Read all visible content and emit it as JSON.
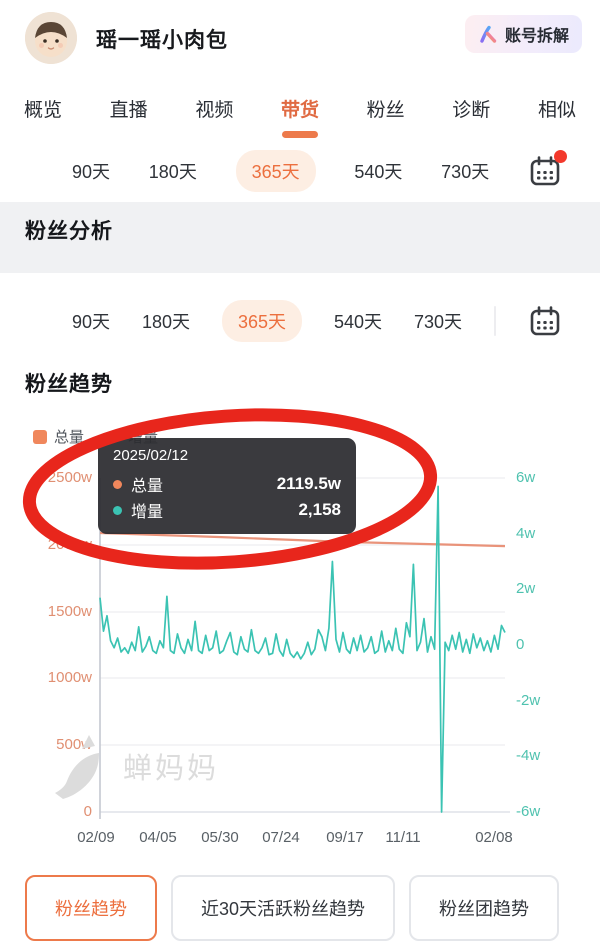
{
  "header": {
    "account_name": "瑶一瑶小肉包",
    "analyze_button": "账号拆解"
  },
  "tabs": {
    "items": [
      {
        "label": "概览"
      },
      {
        "label": "直播"
      },
      {
        "label": "视频"
      },
      {
        "label": "带货"
      },
      {
        "label": "粉丝"
      },
      {
        "label": "诊断"
      },
      {
        "label": "相似"
      }
    ],
    "active": "带货"
  },
  "time_selector": {
    "options": [
      "90天",
      "180天",
      "365天",
      "540天",
      "730天"
    ],
    "selected": "365天",
    "calendar_icon": "calendar-icon",
    "row1_badge": "red-dot-unread"
  },
  "section": {
    "title": "粉丝分析"
  },
  "card": {
    "chart_title": "粉丝趋势"
  },
  "tooltip": {
    "date": "2025/02/12",
    "rows": [
      {
        "label": "总量",
        "value": "2119.5w",
        "color": "#f0875c"
      },
      {
        "label": "增量",
        "value": "2,158",
        "color": "#3bc3b3"
      }
    ]
  },
  "watermark": {
    "text": "蝉妈妈"
  },
  "footer_tabs": [
    {
      "label": "粉丝趋势",
      "active": true
    },
    {
      "label": "近30天活跃粉丝趋势",
      "active": false
    },
    {
      "label": "粉丝团趋势",
      "active": false
    }
  ],
  "colors": {
    "accent_orange": "#ed7a4b",
    "selected_pill_bg": "#fdeee3",
    "total_line": "#e9937a",
    "increment_line": "#3bc3b3",
    "left_axis_text": "#e08f72",
    "right_axis_text": "#4fc2af",
    "annotation_red": "#e8261c",
    "tooltip_bg": "#2b2b2f",
    "badge_red": "#f3392c"
  },
  "chart_data": {
    "type": "line",
    "title": "粉丝趋势",
    "legend": [
      "总量",
      "增量"
    ],
    "legend_position": "top-left",
    "grid": true,
    "x_tick_labels": [
      "02/09",
      "04/05",
      "05/30",
      "07/24",
      "09/17",
      "11/11",
      "02/08"
    ],
    "y_left": {
      "ticks": [
        "2500w",
        "2000w",
        "1500w",
        "1000w",
        "500w",
        "0"
      ],
      "min": 0,
      "max": 2500,
      "unit": "w(万)"
    },
    "y_right": {
      "ticks": [
        "6w",
        "4w",
        "2w",
        "0",
        "-2w",
        "-4w",
        "-6w"
      ],
      "min": -6,
      "max": 6,
      "unit": "w(万)"
    },
    "highlighted_point": {
      "date": "2025/02/12",
      "total": "2119.5w",
      "increment": "2,158"
    },
    "series": [
      {
        "name": "总量",
        "axis": "left",
        "color": "#e9937a",
        "points_frac_value": [
          [
            0,
            2088
          ],
          [
            0.3,
            2058
          ],
          [
            0.6,
            2022
          ],
          [
            0.85,
            2002
          ],
          [
            1,
            1990
          ]
        ]
      },
      {
        "name": "增量",
        "axis": "right",
        "color": "#3bc3b3",
        "values_w": [
          1.7,
          0.5,
          1.05,
          0.15,
          -0.1,
          0.25,
          -0.25,
          -0.1,
          -0.3,
          0.1,
          -0.2,
          0.65,
          -0.25,
          -0.05,
          0.3,
          -0.2,
          -0.3,
          0.15,
          -0.1,
          1.75,
          -0.2,
          -0.3,
          0.4,
          -0.1,
          -0.3,
          0.2,
          -0.2,
          0.85,
          -0.2,
          -0.3,
          0.35,
          -0.2,
          -0.1,
          0.5,
          -0.3,
          -0.2,
          0.15,
          0.45,
          -0.25,
          -0.35,
          0.3,
          -0.15,
          -0.25,
          0.55,
          -0.2,
          -0.3,
          -0.1,
          0.25,
          -0.35,
          -0.3,
          0.4,
          -0.2,
          -0.4,
          0.2,
          -0.3,
          -0.45,
          -0.25,
          -0.5,
          -0.3,
          0.1,
          -0.35,
          -0.15,
          0.55,
          0.3,
          -0.2,
          0.6,
          3.0,
          0.2,
          -0.25,
          0.45,
          -0.15,
          -0.3,
          0.25,
          -0.2,
          0.35,
          -0.25,
          -0.1,
          0.3,
          -0.3,
          -0.2,
          0.5,
          -0.25,
          0.15,
          -0.2,
          0.6,
          -0.15,
          -0.3,
          0.8,
          0.3,
          2.9,
          -0.2,
          0.1,
          0.95,
          -0.25,
          0.3,
          -0.15,
          5.7,
          -6.0,
          0.1,
          -0.2,
          0.35,
          -0.15,
          0.45,
          -0.25,
          0.2,
          -0.3,
          0.4,
          -0.1,
          0.25,
          -0.2,
          0.15,
          -0.25,
          0.35,
          -0.15,
          0.7,
          0.45
        ]
      }
    ]
  }
}
